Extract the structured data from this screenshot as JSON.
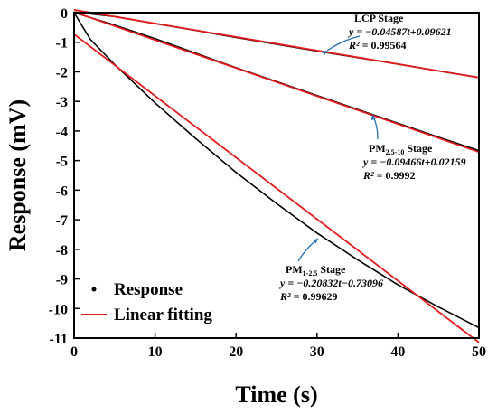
{
  "chart_data": {
    "type": "line",
    "xlabel": "Time (s)",
    "ylabel": "Response (mV)",
    "xlim": [
      0,
      50
    ],
    "ylim": [
      -11,
      0
    ],
    "x_ticks": [
      0,
      10,
      20,
      30,
      40,
      50
    ],
    "y_ticks": [
      0,
      -1,
      -2,
      -3,
      -4,
      -5,
      -6,
      -7,
      -8,
      -9,
      -10,
      -11
    ],
    "grid": false,
    "legend": {
      "position": "bottom-left",
      "entries": [
        {
          "label": "Response",
          "marker": "dot",
          "color": "#000000"
        },
        {
          "label": "Linear fitting",
          "marker": "line",
          "color": "#e31a1c"
        }
      ]
    },
    "series": [
      {
        "name": "Response",
        "color": "#000000",
        "segments": [
          {
            "x": [
              0,
              5,
              10,
              15,
              20,
              25,
              30,
              35,
              40,
              45,
              50
            ],
            "y": [
              0.02,
              -0.13,
              -0.37,
              -0.6,
              -0.84,
              -1.07,
              -1.3,
              -1.52,
              -1.74,
              -1.97,
              -2.19
            ]
          },
          {
            "x": [
              0,
              5,
              10,
              15,
              20,
              25,
              30,
              35,
              40,
              45,
              50
            ],
            "y": [
              0.0,
              -0.42,
              -0.88,
              -1.37,
              -1.86,
              -2.33,
              -2.8,
              -3.27,
              -3.74,
              -4.21,
              -4.66
            ]
          },
          {
            "x": [
              0,
              2,
              5,
              10,
              15,
              20,
              25,
              30,
              35,
              40,
              45,
              50
            ],
            "y": [
              0.0,
              -0.9,
              -1.75,
              -3.05,
              -4.25,
              -5.4,
              -6.45,
              -7.45,
              -8.35,
              -9.2,
              -9.95,
              -10.65
            ]
          }
        ]
      },
      {
        "name": "Linear fitting",
        "color": "#e31a1c",
        "segments": [
          {
            "x": [
              0,
              50
            ],
            "y": [
              0.09621,
              -2.19729
            ]
          },
          {
            "x": [
              0,
              50
            ],
            "y": [
              0.02159,
              -4.71141
            ]
          },
          {
            "x": [
              0,
              50
            ],
            "y": [
              -0.73096,
              -11.14696
            ]
          }
        ]
      }
    ],
    "annotations": [
      {
        "stage": "LCP Stage",
        "equation": "y = −0.04587t+0.09621",
        "r2_label": "R²",
        "r2_value": " = 0.99564",
        "color": "#1f6fb5"
      },
      {
        "stage_main": "PM",
        "stage_sub": "2.5-10",
        "stage_suffix": " Stage",
        "equation": "y = −0.09466t+0.02159",
        "r2_label": "R²",
        "r2_value": " = 0.9992",
        "color": "#1f6fb5"
      },
      {
        "stage_main": "PM",
        "stage_sub": "1-2.5",
        "stage_suffix": " Stage",
        "equation": "y = −0.20832t−0.73096",
        "r2_label": "R²",
        "r2_value": " = 0.99629",
        "color": "#1f6fb5"
      }
    ]
  }
}
